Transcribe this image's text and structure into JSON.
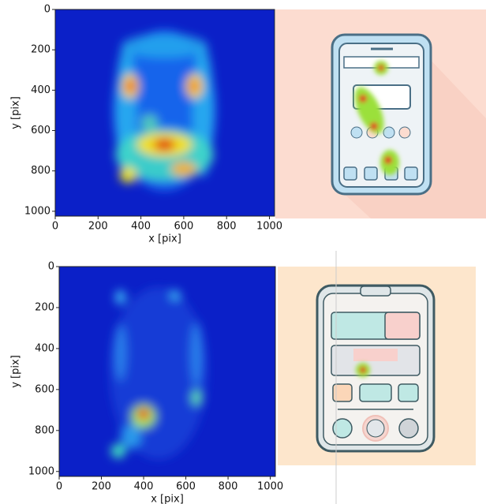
{
  "chart_data": [
    {
      "type": "heatmap",
      "xlabel": "x [pix]",
      "ylabel": "y [pix]",
      "xlim": [
        0,
        1024
      ],
      "ylim": [
        1024,
        0
      ],
      "xticks": [
        0,
        200,
        400,
        600,
        800,
        1000
      ],
      "yticks": [
        0,
        200,
        400,
        600,
        800,
        1000
      ]
    },
    {
      "type": "heatmap",
      "xlabel": "x [pix]",
      "ylabel": "y [pix]",
      "xlim": [
        0,
        1024
      ],
      "ylim": [
        1024,
        0
      ],
      "xticks": [
        0,
        200,
        400,
        600,
        800,
        1000
      ],
      "yticks": [
        0,
        200,
        400,
        600,
        800,
        1000
      ]
    }
  ]
}
